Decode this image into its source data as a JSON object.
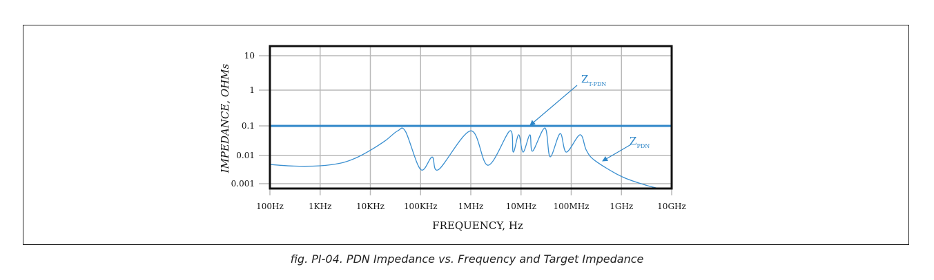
{
  "chart_data": {
    "type": "line",
    "title": "",
    "xlabel": "FREQUENCY, Hz",
    "ylabel": "IMPEDANCE, OHMs",
    "xscale": "log",
    "yscale": "log",
    "xlim": [
      100,
      10000000000
    ],
    "ylim": [
      0.0007,
      20
    ],
    "grid": true,
    "x_ticks": [
      100,
      1000,
      10000,
      100000,
      1000000,
      10000000,
      100000000,
      1000000000,
      10000000000
    ],
    "x_tick_labels": [
      "100Hz",
      "1KHz",
      "10KHz",
      "100KHz",
      "1MHz",
      "10MHz",
      "100MHz",
      "1GHz",
      "10GHz"
    ],
    "y_ticks": [
      10,
      1,
      0.1,
      0.01,
      0.001
    ],
    "y_tick_labels": [
      "10",
      "1",
      "0.1",
      "0.01",
      "0.001"
    ],
    "series": [
      {
        "name": "Z_T-PDN",
        "label_main": "Z",
        "label_sub": "T-PDN",
        "color": "#2e86c8",
        "x": [
          100,
          10000000000
        ],
        "y": [
          0.1,
          0.1
        ]
      },
      {
        "name": "Z_PDN",
        "label_main": "Z",
        "label_sub": "PDN",
        "color": "#3a8fd0",
        "x": [
          100,
          300,
          1000,
          2500,
          5000,
          10000,
          20000,
          35000,
          50000,
          100000,
          170000,
          230000,
          1000000,
          2200000,
          6000000,
          7000000,
          9000000,
          11000000,
          15000000,
          17000000,
          30000000,
          38000000,
          60000000,
          80000000,
          150000000,
          200000000,
          300000000,
          1000000000,
          3000000000,
          5500000000
        ],
        "y": [
          0.0048,
          0.0042,
          0.0043,
          0.0053,
          0.008,
          0.015,
          0.032,
          0.068,
          0.065,
          0.0032,
          0.0088,
          0.0032,
          0.068,
          0.0045,
          0.068,
          0.013,
          0.05,
          0.013,
          0.05,
          0.014,
          0.085,
          0.009,
          0.055,
          0.013,
          0.05,
          0.015,
          0.0065,
          0.0018,
          0.0009,
          0.0007
        ]
      }
    ],
    "annotations": [
      {
        "text_main": "Z",
        "text_sub": "T-PDN",
        "points_to": "Z_T-PDN"
      },
      {
        "text_main": "Z",
        "text_sub": "PDN",
        "points_to": "Z_PDN"
      }
    ]
  },
  "caption": "fig. PI-04.  PDN Impedance vs. Frequency and Target Impedance"
}
